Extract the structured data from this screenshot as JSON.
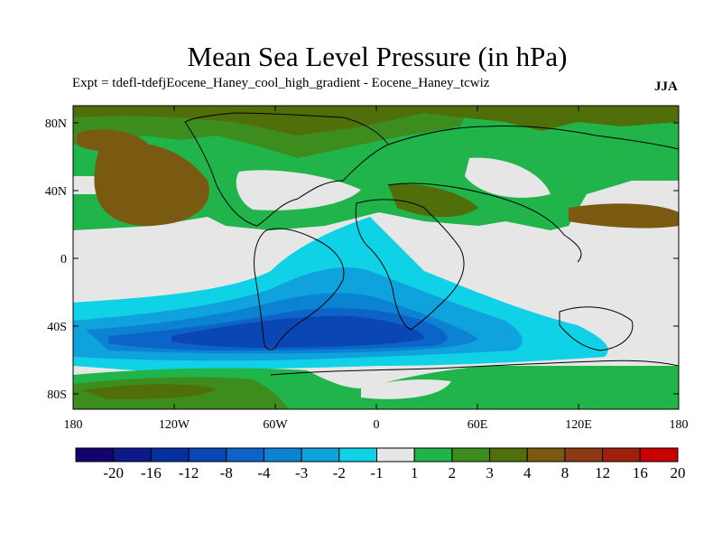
{
  "title": "Mean Sea Level Pressure (in hPa)",
  "subtitle": "Expt = tdefl-tdefjEocene_Haney_cool_high_gradient - Eocene_Haney_tcwiz",
  "season": "JJA",
  "lat_ticks": [
    "80N",
    "40N",
    "0",
    "40S",
    "80S"
  ],
  "lon_ticks": [
    "180",
    "120W",
    "60W",
    "0",
    "60E",
    "120E",
    "180"
  ],
  "colorbar": {
    "labels": [
      "-20",
      "-16",
      "-12",
      "-8",
      "-4",
      "-3",
      "-2",
      "-1",
      "1",
      "2",
      "3",
      "4",
      "8",
      "12",
      "16",
      "20"
    ],
    "colors": [
      "#14006e",
      "#0c1a8c",
      "#06309e",
      "#0a46b4",
      "#0d64c8",
      "#0c82d2",
      "#10a2dc",
      "#10d2e6",
      "#e6e6e6",
      "#20b44a",
      "#3c8c1e",
      "#506e0a",
      "#7a5a10",
      "#8c3a14",
      "#a01e0c",
      "#c80000"
    ]
  }
}
